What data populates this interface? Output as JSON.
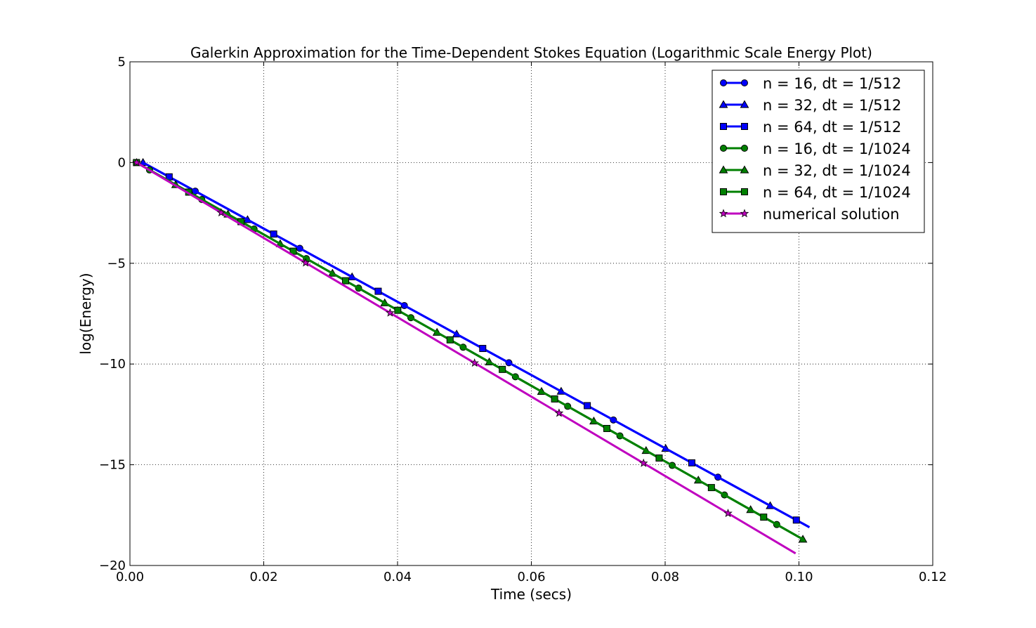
{
  "chart_data": {
    "type": "line",
    "title": "Galerkin Approximation for the Time-Dependent Stokes Equation (Logarithmic Scale Energy Plot)",
    "xlabel": "Time (secs)",
    "ylabel": "log(Energy)",
    "xlim": [
      0.0,
      0.12
    ],
    "ylim": [
      -20,
      5
    ],
    "xticks": [
      "0.00",
      "0.02",
      "0.04",
      "0.06",
      "0.08",
      "0.10",
      "0.12"
    ],
    "yticks": [
      "5",
      "0",
      "−5",
      "−10",
      "−15",
      "−20"
    ],
    "grid": true,
    "legend_position": "top-right",
    "series": [
      {
        "name": "n = 16, dt = 1/512",
        "color": "#0000ff",
        "marker": "circle",
        "x_start": 0.001953,
        "x_end": 0.101563,
        "y_start": 0.0,
        "y_end": -18.1
      },
      {
        "name": "n = 32, dt = 1/512",
        "color": "#0000ff",
        "marker": "triangle",
        "x_start": 0.001953,
        "x_end": 0.101563,
        "y_start": 0.0,
        "y_end": -18.1
      },
      {
        "name": "n = 64, dt = 1/512",
        "color": "#0000ff",
        "marker": "square",
        "x_start": 0.001953,
        "x_end": 0.101563,
        "y_start": 0.0,
        "y_end": -18.1
      },
      {
        "name": "n = 16, dt = 1/1024",
        "color": "#008000",
        "marker": "circle",
        "x_start": 0.000977,
        "x_end": 0.100586,
        "y_start": 0.0,
        "y_end": -18.7
      },
      {
        "name": "n = 32, dt = 1/1024",
        "color": "#008000",
        "marker": "triangle",
        "x_start": 0.000977,
        "x_end": 0.100586,
        "y_start": 0.0,
        "y_end": -18.7
      },
      {
        "name": "n = 64, dt = 1/1024",
        "color": "#008000",
        "marker": "square",
        "x_start": 0.000977,
        "x_end": 0.100586,
        "y_start": 0.0,
        "y_end": -18.7
      },
      {
        "name": "numerical solution",
        "color": "#bf00bf",
        "marker": "star",
        "x_start": 0.001,
        "x_end": 0.0995,
        "y_start": 0.0,
        "y_end": -19.4
      }
    ]
  }
}
